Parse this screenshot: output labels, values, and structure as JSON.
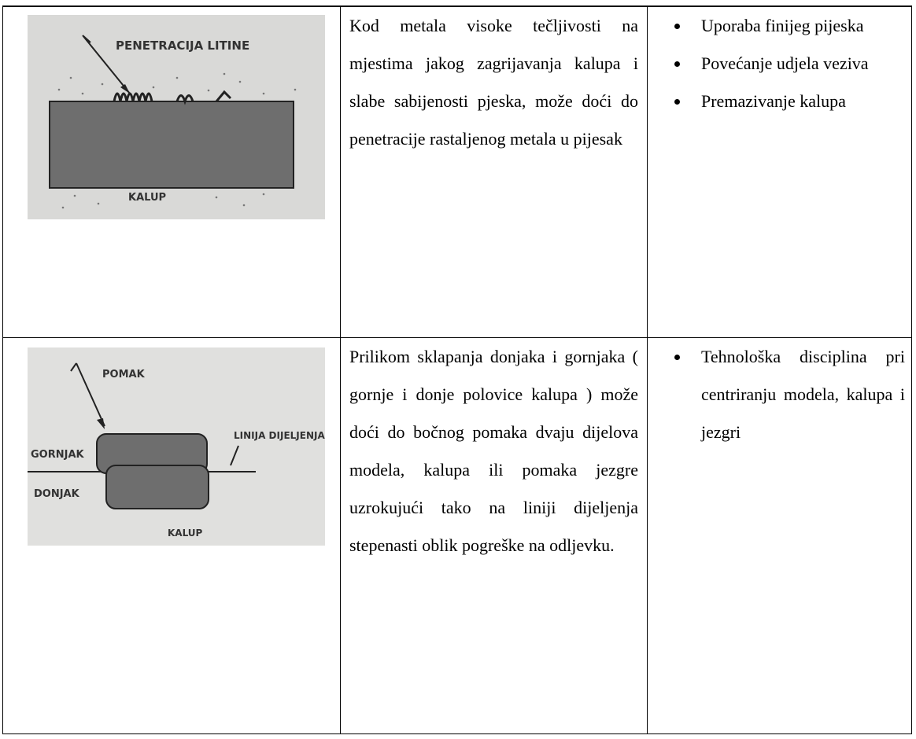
{
  "table": {
    "rows": [
      {
        "figure": {
          "labels": [
            "PENETRACIJA LITINE",
            "KALUP"
          ]
        },
        "description": "Kod metala visoke tečljivosti na mjestima jakog zagrijavanja kalupa i slabe sabijenosti pjeska, može doći do penetracije rastaljenog metala u pijesak",
        "remedies": [
          "Uporaba finijeg pijeska",
          "Povećanje udjela veziva",
          "Premazivanje kalupa"
        ]
      },
      {
        "figure": {
          "labels": [
            "POMAK",
            "GORNJAK",
            "LINIJA DIJELJENJA",
            "DONJAK",
            "KALUP"
          ]
        },
        "description": "Prilikom sklapanja donjaka i gornjaka ( gornje i donje polovice kalupa ) može doći do bočnog pomaka dvaju dijelova modela, kalupa ili pomaka jezgre uzrokujući tako na liniji dijeljenja stepenasti oblik pogreške na odljevku.",
        "remedies": [
          "Tehnološka disciplina pri centriranju modela, kalupa i jezgri"
        ]
      }
    ]
  }
}
